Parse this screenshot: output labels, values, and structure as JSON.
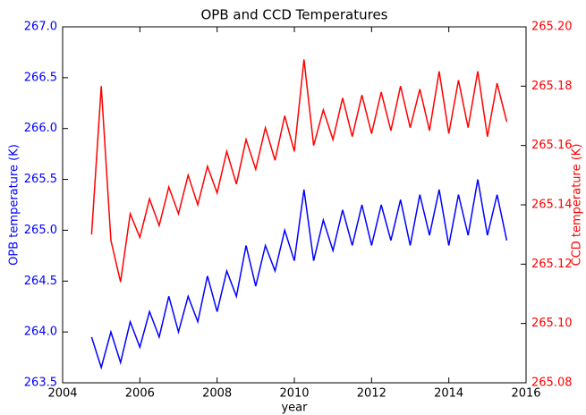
{
  "chart_data": {
    "type": "line",
    "title": "OPB and CCD Temperatures",
    "x_label": "year",
    "y_label": "OPB temperature (K)",
    "y2_label": "CCD temperature (K)",
    "x": [
      2004.75,
      2005.0,
      2005.25,
      2005.5,
      2005.75,
      2006.0,
      2006.25,
      2006.5,
      2006.75,
      2007.0,
      2007.25,
      2007.5,
      2007.75,
      2008.0,
      2008.25,
      2008.5,
      2008.75,
      2009.0,
      2009.25,
      2009.5,
      2009.75,
      2010.0,
      2010.25,
      2010.5,
      2010.75,
      2011.0,
      2011.25,
      2011.5,
      2011.75,
      2012.0,
      2012.25,
      2012.5,
      2012.75,
      2013.0,
      2013.25,
      2013.5,
      2013.75,
      2014.0,
      2014.25,
      2014.5,
      2014.75,
      2015.0,
      2015.25,
      2015.5
    ],
    "series": [
      {
        "name": "OPB",
        "color": "#0000ff",
        "axis": "y",
        "values": [
          263.95,
          263.65,
          264.0,
          263.7,
          264.1,
          263.85,
          264.2,
          263.95,
          264.35,
          264.0,
          264.35,
          264.1,
          264.55,
          264.2,
          264.6,
          264.35,
          264.85,
          264.45,
          264.85,
          264.6,
          265.0,
          264.7,
          265.4,
          264.7,
          265.1,
          264.8,
          265.2,
          264.85,
          265.25,
          264.85,
          265.25,
          264.9,
          265.3,
          264.85,
          265.35,
          264.95,
          265.4,
          264.85,
          265.35,
          264.95,
          265.5,
          264.95,
          265.35,
          264.9
        ]
      },
      {
        "name": "CCD",
        "color": "#ff0000",
        "axis": "y2",
        "values": [
          265.13,
          265.18,
          265.128,
          265.114,
          265.137,
          265.129,
          265.142,
          265.133,
          265.146,
          265.137,
          265.15,
          265.14,
          265.153,
          265.144,
          265.158,
          265.147,
          265.162,
          265.152,
          265.166,
          265.155,
          265.17,
          265.158,
          265.189,
          265.16,
          265.172,
          265.162,
          265.176,
          265.163,
          265.177,
          265.164,
          265.178,
          265.165,
          265.18,
          265.166,
          265.179,
          265.165,
          265.185,
          265.164,
          265.182,
          265.166,
          265.185,
          265.163,
          265.181,
          265.168
        ]
      }
    ],
    "xlim": [
      2004,
      2016
    ],
    "xticks": [
      2004,
      2006,
      2008,
      2010,
      2012,
      2014,
      2016
    ],
    "ylim": [
      263.5,
      267.0
    ],
    "yticks": [
      263.5,
      {
        "value": 264,
        "label": "264.0"
      },
      264.5,
      {
        "value": 265,
        "label": "265.0"
      },
      265.5,
      {
        "value": 266,
        "label": "266.0"
      },
      266.5,
      {
        "value": 267,
        "label": "267.0"
      }
    ],
    "y2lim": [
      265.08,
      265.2
    ],
    "y2ticks": [
      265.08,
      {
        "value": 265.1,
        "label": "265.10"
      },
      265.12,
      265.14,
      265.16,
      265.18,
      {
        "value": 265.2,
        "label": "265.20"
      }
    ],
    "grid": false
  }
}
